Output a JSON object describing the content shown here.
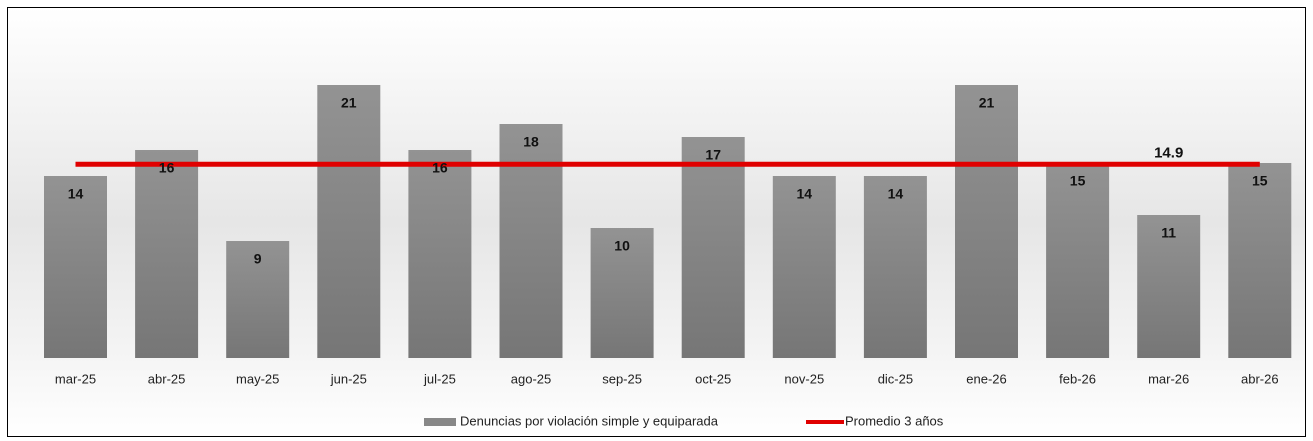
{
  "chart_data": {
    "type": "bar",
    "categories": [
      "mar-25",
      "abr-25",
      "may-25",
      "jun-25",
      "jul-25",
      "ago-25",
      "sep-25",
      "oct-25",
      "nov-25",
      "dic-25",
      "ene-26",
      "feb-26",
      "mar-26",
      "abr-26"
    ],
    "series": [
      {
        "name": "Denuncias por violación simple y equiparada",
        "color": "#888888",
        "values": [
          14,
          16,
          9,
          21,
          16,
          18,
          10,
          17,
          14,
          14,
          21,
          15,
          11,
          15
        ]
      }
    ],
    "average": {
      "name": "Promedio 3 años",
      "color": "#e00000",
      "value": 14.9
    },
    "ylim": [
      0,
      25
    ]
  }
}
